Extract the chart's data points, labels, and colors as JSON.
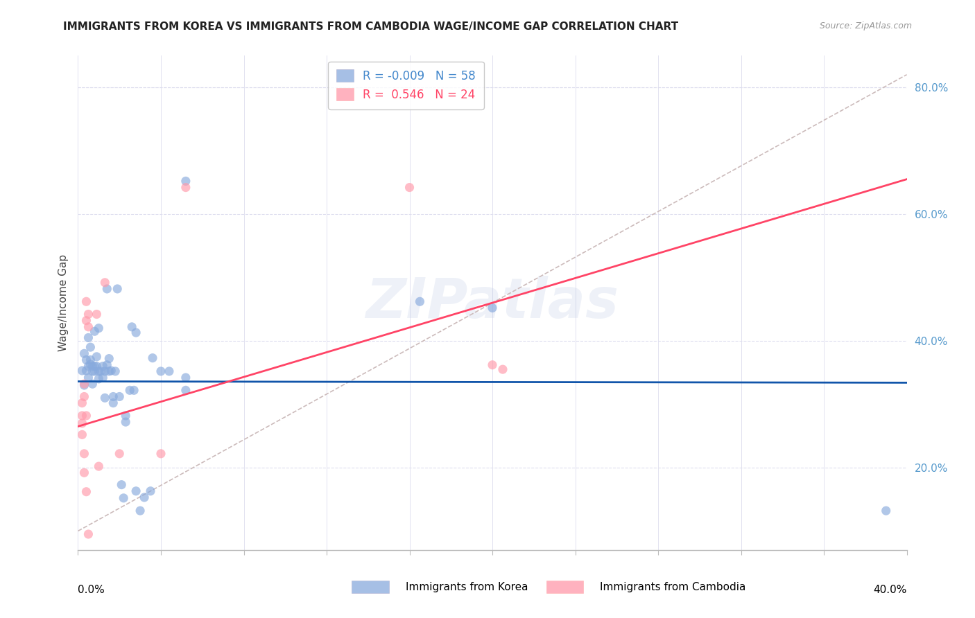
{
  "title": "IMMIGRANTS FROM KOREA VS IMMIGRANTS FROM CAMBODIA WAGE/INCOME GAP CORRELATION CHART",
  "source": "Source: ZipAtlas.com",
  "ylabel": "Wage/Income Gap",
  "watermark": "ZIPatlas",
  "korea_color": "#88AADD",
  "cambodia_color": "#FF99AA",
  "korea_line_color": "#1155AA",
  "cambodia_line_color": "#FF4466",
  "diagonal_color": "#CCBBBB",
  "korea_r": -0.009,
  "korea_n": 58,
  "cambodia_r": 0.546,
  "cambodia_n": 24,
  "xlim": [
    0.0,
    0.4
  ],
  "ylim": [
    0.07,
    0.85
  ],
  "x_ticks": [
    0.0,
    0.04,
    0.08,
    0.12,
    0.16,
    0.2,
    0.24,
    0.28,
    0.32,
    0.36,
    0.4
  ],
  "y_ticks": [
    0.2,
    0.4,
    0.6,
    0.8
  ],
  "y_tick_labels": [
    "20.0%",
    "40.0%",
    "60.0%",
    "80.0%"
  ],
  "korea_line": [
    0.0,
    0.336,
    0.4,
    0.334
  ],
  "cambodia_line": [
    0.0,
    0.265,
    0.4,
    0.655
  ],
  "diagonal_line": [
    0.0,
    0.1,
    0.4,
    0.82
  ],
  "korea_points": [
    [
      0.002,
      0.353
    ],
    [
      0.003,
      0.33
    ],
    [
      0.003,
      0.38
    ],
    [
      0.004,
      0.353
    ],
    [
      0.004,
      0.37
    ],
    [
      0.005,
      0.36
    ],
    [
      0.005,
      0.342
    ],
    [
      0.005,
      0.405
    ],
    [
      0.006,
      0.37
    ],
    [
      0.006,
      0.363
    ],
    [
      0.006,
      0.39
    ],
    [
      0.007,
      0.352
    ],
    [
      0.007,
      0.36
    ],
    [
      0.007,
      0.332
    ],
    [
      0.008,
      0.36
    ],
    [
      0.008,
      0.352
    ],
    [
      0.008,
      0.415
    ],
    [
      0.009,
      0.375
    ],
    [
      0.009,
      0.36
    ],
    [
      0.01,
      0.352
    ],
    [
      0.01,
      0.34
    ],
    [
      0.01,
      0.42
    ],
    [
      0.011,
      0.352
    ],
    [
      0.012,
      0.342
    ],
    [
      0.012,
      0.36
    ],
    [
      0.013,
      0.31
    ],
    [
      0.013,
      0.352
    ],
    [
      0.014,
      0.482
    ],
    [
      0.014,
      0.362
    ],
    [
      0.015,
      0.372
    ],
    [
      0.015,
      0.352
    ],
    [
      0.016,
      0.353
    ],
    [
      0.017,
      0.312
    ],
    [
      0.017,
      0.302
    ],
    [
      0.018,
      0.352
    ],
    [
      0.019,
      0.482
    ],
    [
      0.02,
      0.312
    ],
    [
      0.021,
      0.173
    ],
    [
      0.022,
      0.152
    ],
    [
      0.023,
      0.282
    ],
    [
      0.023,
      0.272
    ],
    [
      0.025,
      0.322
    ],
    [
      0.026,
      0.422
    ],
    [
      0.027,
      0.322
    ],
    [
      0.028,
      0.163
    ],
    [
      0.028,
      0.413
    ],
    [
      0.03,
      0.132
    ],
    [
      0.032,
      0.153
    ],
    [
      0.035,
      0.163
    ],
    [
      0.036,
      0.373
    ],
    [
      0.04,
      0.352
    ],
    [
      0.044,
      0.352
    ],
    [
      0.052,
      0.652
    ],
    [
      0.052,
      0.342
    ],
    [
      0.052,
      0.322
    ],
    [
      0.165,
      0.462
    ],
    [
      0.2,
      0.452
    ],
    [
      0.39,
      0.132
    ]
  ],
  "cambodia_points": [
    [
      0.002,
      0.302
    ],
    [
      0.002,
      0.282
    ],
    [
      0.002,
      0.27
    ],
    [
      0.002,
      0.252
    ],
    [
      0.003,
      0.332
    ],
    [
      0.003,
      0.312
    ],
    [
      0.003,
      0.222
    ],
    [
      0.003,
      0.192
    ],
    [
      0.004,
      0.462
    ],
    [
      0.004,
      0.432
    ],
    [
      0.004,
      0.282
    ],
    [
      0.004,
      0.162
    ],
    [
      0.005,
      0.442
    ],
    [
      0.005,
      0.422
    ],
    [
      0.005,
      0.095
    ],
    [
      0.009,
      0.442
    ],
    [
      0.01,
      0.202
    ],
    [
      0.013,
      0.492
    ],
    [
      0.02,
      0.222
    ],
    [
      0.04,
      0.222
    ],
    [
      0.052,
      0.642
    ],
    [
      0.16,
      0.642
    ],
    [
      0.2,
      0.362
    ],
    [
      0.205,
      0.355
    ]
  ]
}
